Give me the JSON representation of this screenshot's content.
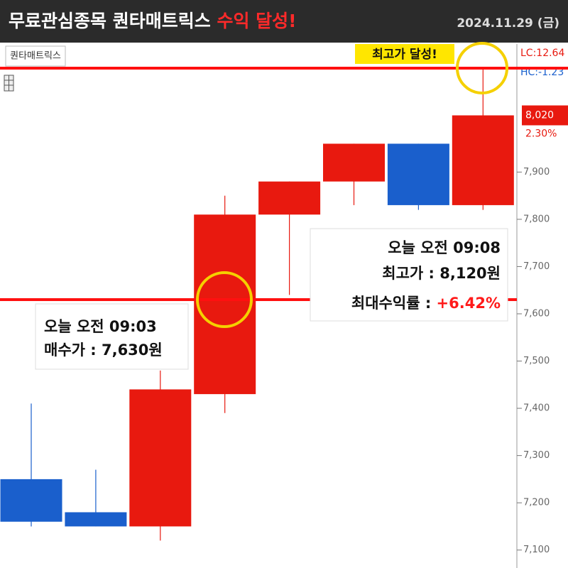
{
  "header": {
    "title_main": "무료관심종목 퀀타매트릭스",
    "title_highlight": "수익 달성!",
    "date": "2024.11.29 (금)"
  },
  "chart_data": {
    "type": "candlestick",
    "label": "퀀타매트릭스",
    "up_color": "#e8190f",
    "down_color": "#1a5fcc",
    "open": [
      7250,
      7180,
      7150,
      7430,
      7810,
      7880,
      7960,
      7830
    ],
    "high": [
      7410,
      7270,
      7480,
      7850,
      7880,
      7960,
      7960,
      8120
    ],
    "low": [
      7150,
      7150,
      7120,
      7390,
      7640,
      7830,
      7820,
      7820
    ],
    "close": [
      7160,
      7150,
      7440,
      7810,
      7880,
      7960,
      7830,
      8020
    ],
    "ylim": [
      7062,
      8171
    ],
    "yticks": [
      {
        "value": 7100,
        "label": "7,100"
      },
      {
        "value": 7200,
        "label": "7,200"
      },
      {
        "value": 7300,
        "label": "7,300"
      },
      {
        "value": 7400,
        "label": "7,400"
      },
      {
        "value": 7500,
        "label": "7,500"
      },
      {
        "value": 7600,
        "label": "7,600"
      },
      {
        "value": 7700,
        "label": "7,700"
      },
      {
        "value": 7800,
        "label": "7,800"
      },
      {
        "value": 7900,
        "label": "7,900"
      }
    ],
    "buy_price": 7630,
    "high_price": 8120,
    "current_price": {
      "value": 8020,
      "label": "8,020"
    },
    "change": "2.30%",
    "lc": "LC:12.64",
    "hc": "HC:-1.23",
    "high_note": "최고가 달성!",
    "buy_box": {
      "time": "오늘 오전 09:03",
      "price": "매수가 : 7,630원"
    },
    "high_box": {
      "time": "오늘 오전 09:08",
      "price": "최고가 : 8,120원",
      "return_label": "최대수익률 : ",
      "return_value": "+6.42%"
    }
  }
}
